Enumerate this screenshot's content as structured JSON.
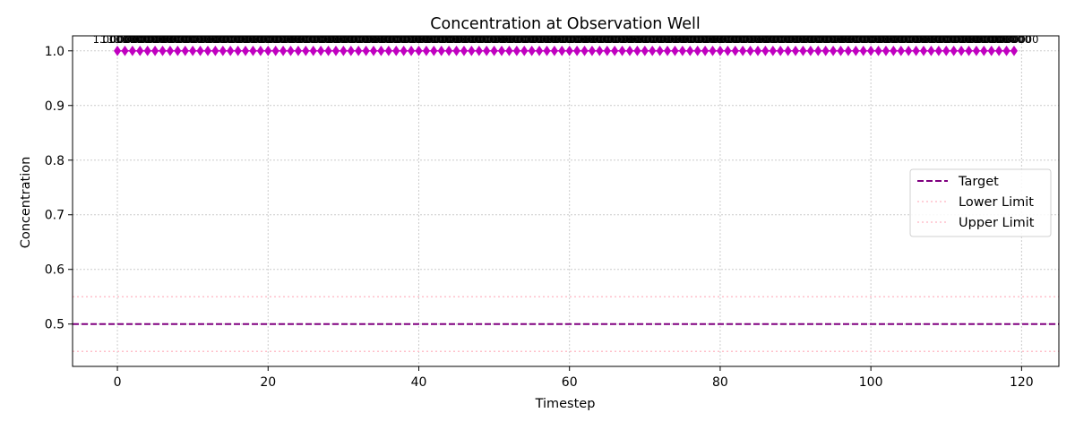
{
  "chart_data": {
    "type": "line",
    "title": "Concentration at Observation Well",
    "xlabel": "Timestep",
    "ylabel": "Concentration",
    "xlim": [
      -5.95,
      124.95
    ],
    "ylim": [
      0.4225,
      1.0275
    ],
    "xticks": [
      "0",
      "20",
      "40",
      "60",
      "80",
      "100",
      "120"
    ],
    "yticks": [
      "0.5",
      "0.6",
      "0.7",
      "0.8",
      "0.9",
      "1.0"
    ],
    "grid": true,
    "legend_position": "center-right",
    "series": [
      {
        "name": "",
        "marker": "diamond",
        "color": "#c000c0",
        "x_start": 0,
        "x_end": 119,
        "x_step": 1,
        "y_constant": 1.0,
        "point_label": "1.000000"
      }
    ],
    "reference_lines": [
      {
        "name": "Target",
        "value": 0.5,
        "style": "dashed",
        "color": "#800080"
      },
      {
        "name": "Lower Limit",
        "value": 0.45,
        "style": "dotted",
        "color": "#ffc0cb"
      },
      {
        "name": "Upper Limit",
        "value": 0.55,
        "style": "dotted",
        "color": "#ffc0cb"
      }
    ]
  }
}
